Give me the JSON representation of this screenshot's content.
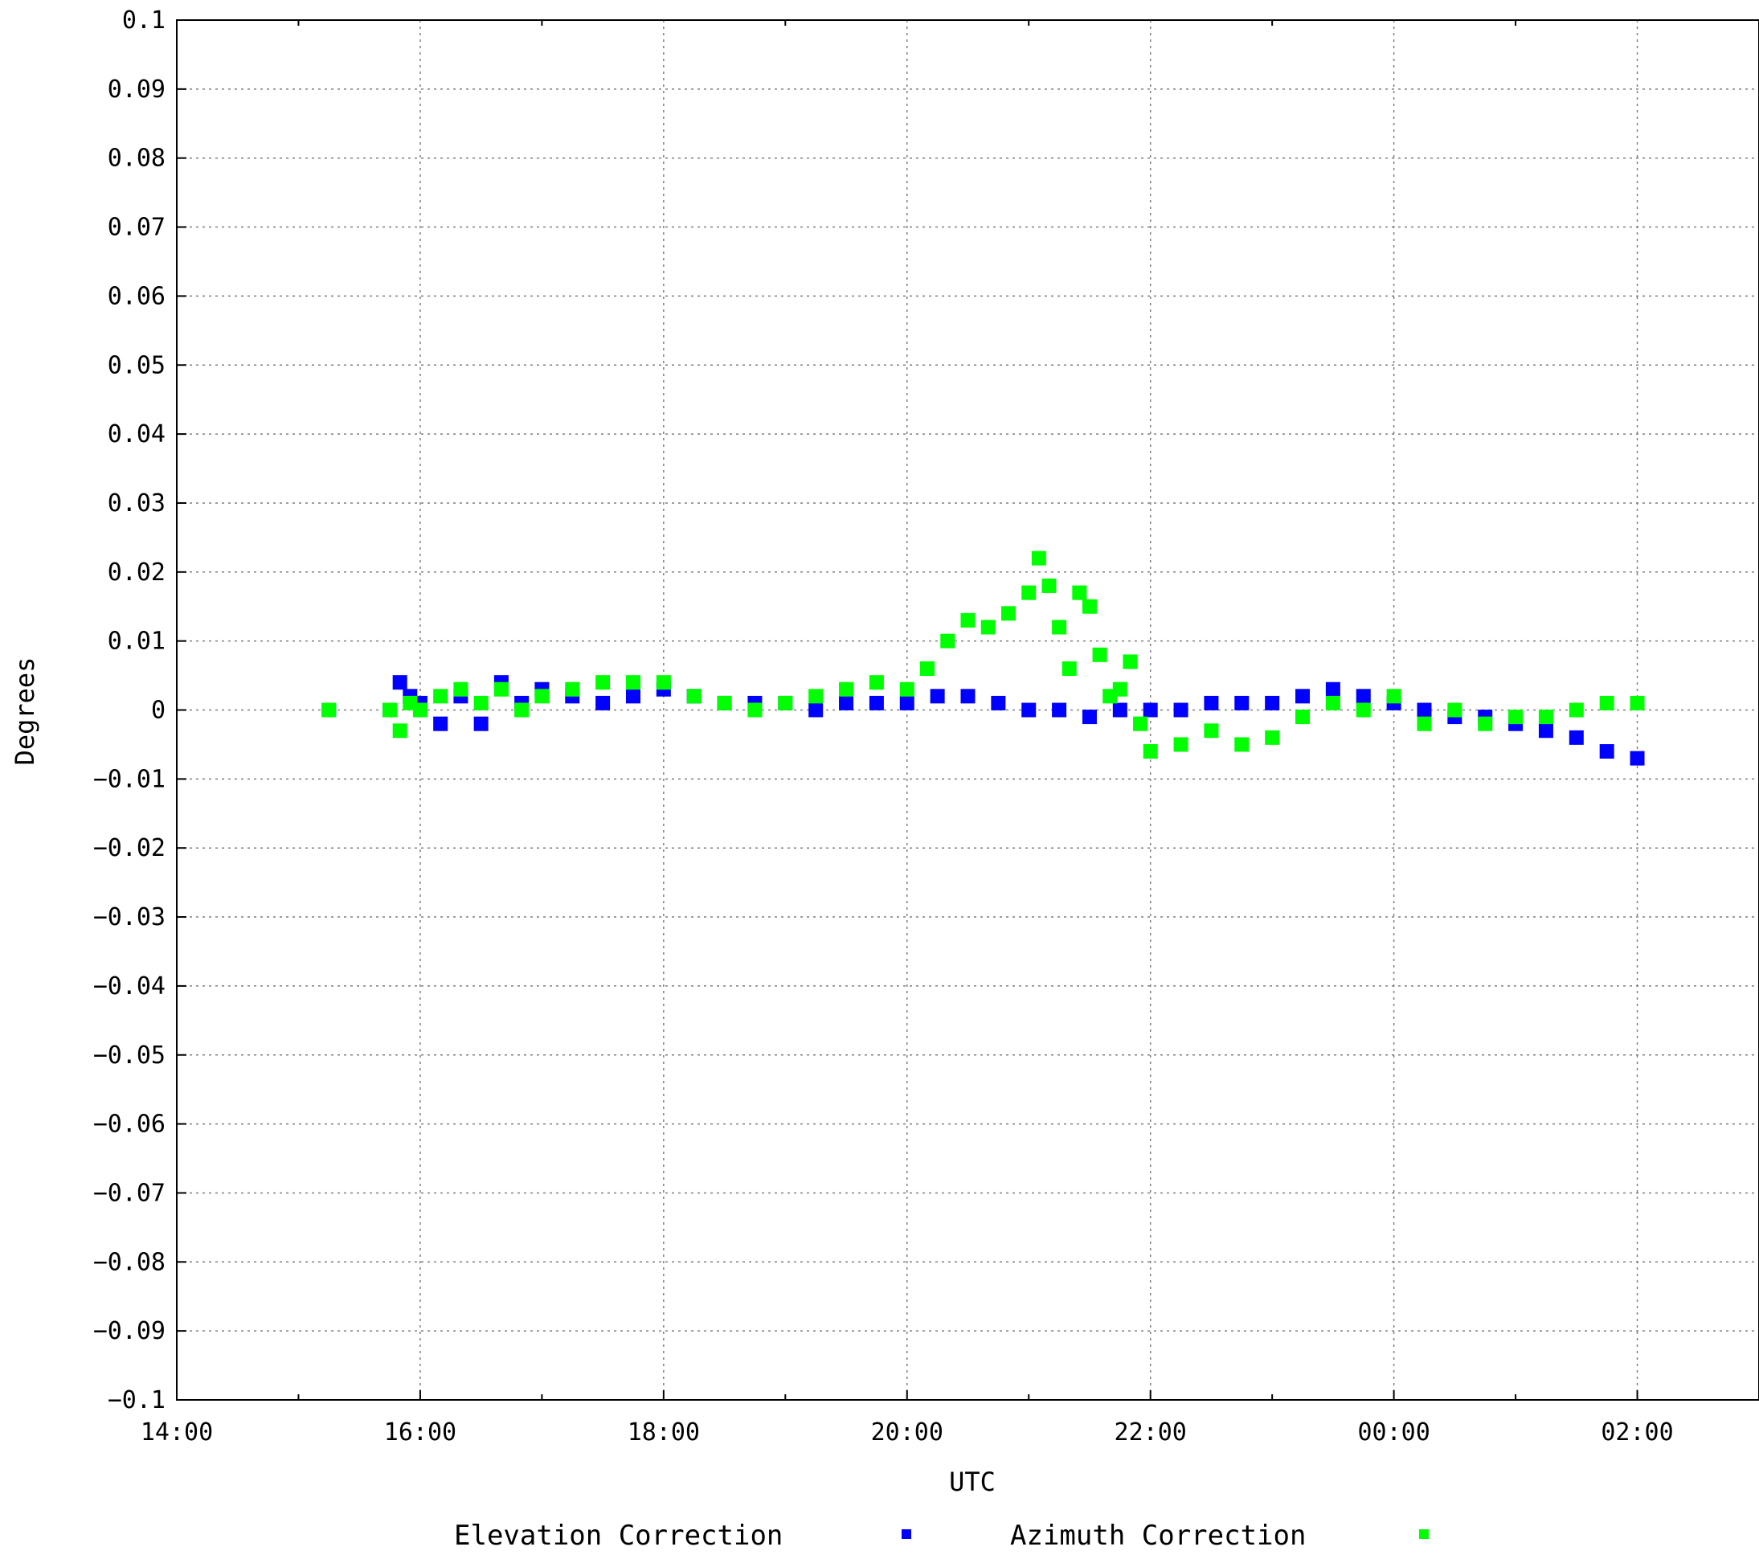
{
  "chart_data": {
    "type": "scatter",
    "xlabel": "UTC",
    "ylabel": "Degrees",
    "xlim": [
      "14:00",
      "03:00"
    ],
    "ylim": [
      -0.1,
      0.1
    ],
    "x_ticks": [
      "14:00",
      "16:00",
      "18:00",
      "20:00",
      "22:00",
      "00:00",
      "02:00"
    ],
    "y_ticks": [
      "0.1",
      "0.09",
      "0.08",
      "0.07",
      "0.06",
      "0.05",
      "0.04",
      "0.03",
      "0.02",
      "0.01",
      "0",
      "-0.01",
      "-0.02",
      "-0.03",
      "-0.04",
      "-0.05",
      "-0.06",
      "-0.07",
      "-0.08",
      "-0.09",
      "-0.1"
    ],
    "grid": true,
    "legend_position": "bottom",
    "series": [
      {
        "name": "Elevation Correction",
        "color": "#0000ff",
        "x": [
          "15:15",
          "15:45",
          "15:50",
          "15:55",
          "16:00",
          "16:10",
          "16:20",
          "16:30",
          "16:40",
          "16:50",
          "17:00",
          "17:15",
          "17:30",
          "17:45",
          "18:00",
          "18:15",
          "18:30",
          "18:45",
          "19:00",
          "19:15",
          "19:30",
          "19:45",
          "20:00",
          "20:15",
          "20:30",
          "20:45",
          "21:00",
          "21:15",
          "21:30",
          "21:45",
          "22:00",
          "22:15",
          "22:30",
          "22:45",
          "23:00",
          "23:15",
          "23:30",
          "23:45",
          "00:00",
          "00:15",
          "00:30",
          "00:45",
          "01:00",
          "01:15",
          "01:30",
          "01:45",
          "02:00"
        ],
        "y": [
          0,
          0,
          0.004,
          0.002,
          0.001,
          -0.002,
          0.002,
          -0.002,
          0.004,
          0.001,
          0.003,
          0.002,
          0.001,
          0.002,
          0.003,
          0.002,
          0.001,
          0.001,
          0.001,
          0.0,
          0.001,
          0.001,
          0.001,
          0.002,
          0.002,
          0.001,
          0.0,
          0.0,
          -0.001,
          0.0,
          0.0,
          0.0,
          0.001,
          0.001,
          0.001,
          0.002,
          0.003,
          0.002,
          0.001,
          0.0,
          -0.001,
          -0.001,
          -0.002,
          -0.003,
          -0.004,
          -0.006,
          -0.007
        ]
      },
      {
        "name": "Azimuth Correction",
        "color": "#00ff00",
        "x": [
          "15:15",
          "15:45",
          "15:50",
          "15:55",
          "16:00",
          "16:10",
          "16:20",
          "16:30",
          "16:40",
          "16:50",
          "17:00",
          "17:15",
          "17:30",
          "17:45",
          "18:00",
          "18:15",
          "18:30",
          "18:45",
          "19:00",
          "19:15",
          "19:30",
          "19:45",
          "20:00",
          "20:10",
          "20:20",
          "20:30",
          "20:40",
          "20:50",
          "21:00",
          "21:05",
          "21:10",
          "21:15",
          "21:20",
          "21:25",
          "21:30",
          "21:35",
          "21:40",
          "21:45",
          "21:50",
          "21:55",
          "22:00",
          "22:15",
          "22:30",
          "22:45",
          "23:00",
          "23:15",
          "23:30",
          "23:45",
          "00:00",
          "00:15",
          "00:30",
          "00:45",
          "01:00",
          "01:15",
          "01:30",
          "01:45",
          "02:00"
        ],
        "y": [
          0,
          0,
          -0.003,
          0.001,
          0.0,
          0.002,
          0.003,
          0.001,
          0.003,
          0.0,
          0.002,
          0.003,
          0.004,
          0.004,
          0.004,
          0.002,
          0.001,
          0.0,
          0.001,
          0.002,
          0.003,
          0.004,
          0.003,
          0.006,
          0.01,
          0.013,
          0.012,
          0.014,
          0.017,
          0.022,
          0.018,
          0.012,
          0.006,
          0.017,
          0.015,
          0.008,
          0.002,
          0.003,
          0.007,
          -0.002,
          -0.006,
          -0.005,
          -0.003,
          -0.005,
          -0.004,
          -0.001,
          0.001,
          0.0,
          0.002,
          -0.002,
          0.0,
          -0.002,
          -0.001,
          -0.001,
          0.0,
          0.001,
          0.001
        ]
      }
    ]
  }
}
